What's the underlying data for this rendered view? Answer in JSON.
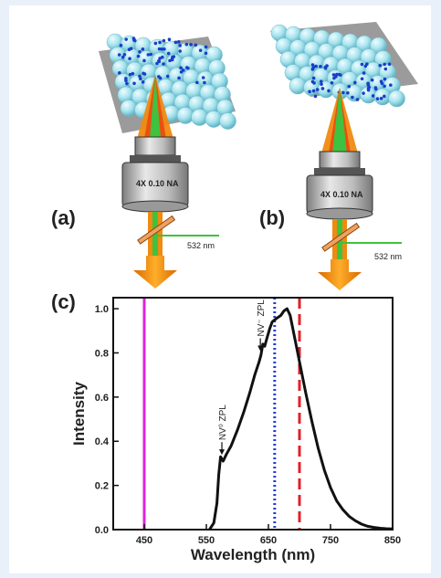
{
  "panels": {
    "a": {
      "label": "(a)",
      "objective_text": "4X 0.10 NA",
      "laser_label": "532 nm"
    },
    "b": {
      "label": "(b)",
      "objective_text": "4X 0.10 NA",
      "laser_label": "532 nm"
    },
    "c": {
      "label": "(c)"
    }
  },
  "colors": {
    "sphere": "#a8e4ee",
    "dot": "#1a3fc8",
    "green_beam": "#3fc23f",
    "orange_beam": "#f08a10",
    "plate": "#9b9b9b",
    "curve": "#111111",
    "magenta": "#e020e0",
    "blue_dotted": "#1a3fd8",
    "red_dashed": "#e0202a"
  },
  "chart_data": {
    "type": "line",
    "xlabel": "Wavelength (nm)",
    "ylabel": "Intensity",
    "xlim": [
      400,
      850
    ],
    "ylim": [
      0.0,
      1.05
    ],
    "x_ticks": [
      450,
      550,
      650,
      750,
      850
    ],
    "y_ticks": [
      "0.0",
      "0.2",
      "0.4",
      "0.6",
      "0.8",
      "1.0"
    ],
    "series": [
      {
        "x": [
          555,
          562,
          567,
          570,
          573,
          577,
          582,
          590,
          600,
          610,
          620,
          628,
          635,
          638,
          641,
          644,
          648,
          652,
          656,
          660,
          665,
          670,
          675,
          680,
          685,
          690,
          695,
          700,
          710,
          720,
          730,
          740,
          750,
          760,
          770,
          780,
          790,
          800,
          810,
          820,
          830,
          840,
          850
        ],
        "y": [
          0.0,
          0.03,
          0.12,
          0.25,
          0.33,
          0.31,
          0.34,
          0.38,
          0.45,
          0.53,
          0.62,
          0.7,
          0.76,
          0.79,
          0.84,
          0.83,
          0.87,
          0.91,
          0.94,
          0.95,
          0.96,
          0.97,
          0.99,
          1.0,
          0.97,
          0.9,
          0.83,
          0.76,
          0.62,
          0.49,
          0.37,
          0.27,
          0.19,
          0.13,
          0.09,
          0.06,
          0.04,
          0.025,
          0.015,
          0.01,
          0.006,
          0.004,
          0.003
        ]
      }
    ],
    "vertical_lines": [
      {
        "x": 450,
        "style": "solid",
        "color": "#e020e0"
      },
      {
        "x": 660,
        "style": "dotted",
        "color": "#1a3fd8"
      },
      {
        "x": 700,
        "style": "dashed",
        "color": "#e0202a"
      }
    ],
    "annotations": [
      {
        "text": "NV⁰ ZPL",
        "x": 575,
        "y": 0.33
      },
      {
        "text": "NV⁻ ZPL",
        "x": 637,
        "y": 0.8
      }
    ]
  }
}
